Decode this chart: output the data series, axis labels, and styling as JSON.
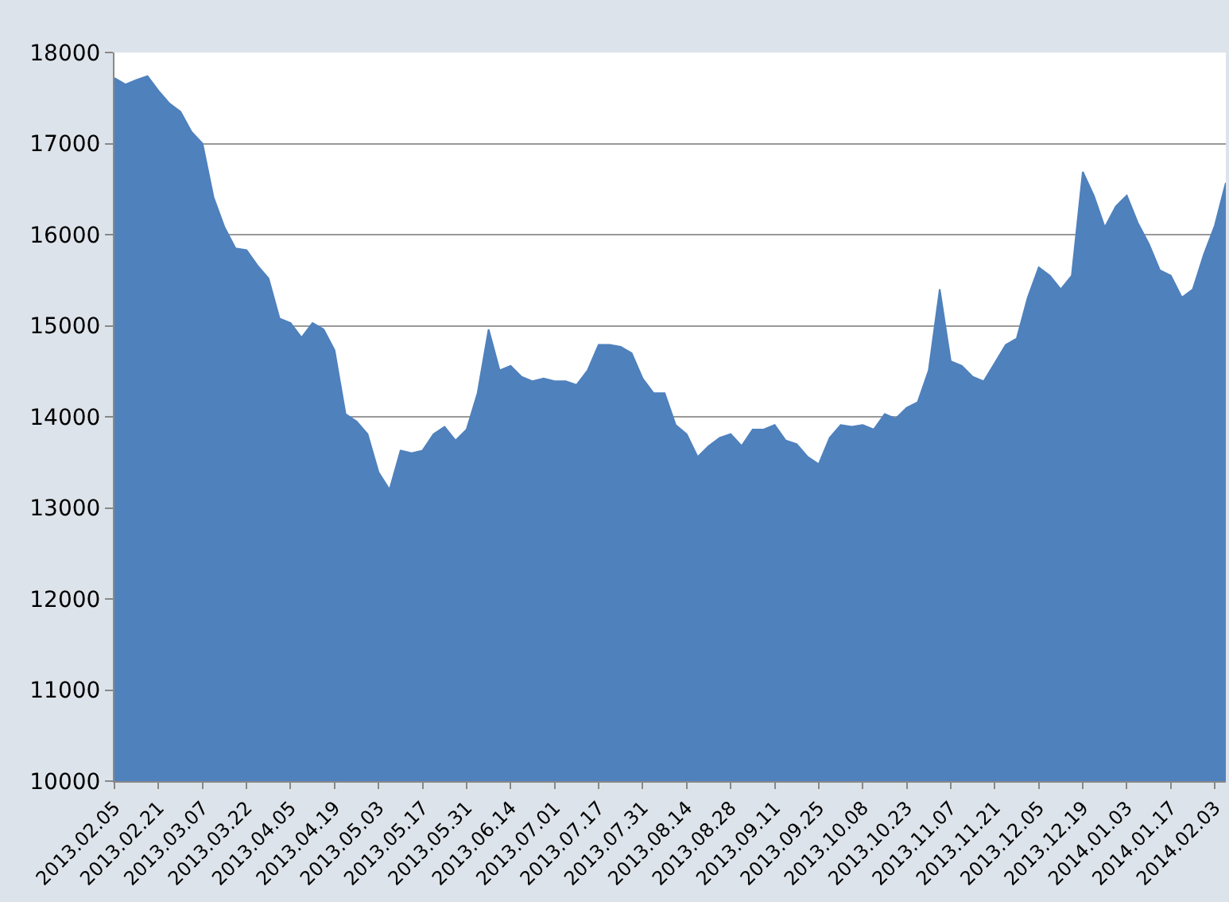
{
  "chart_data": {
    "type": "area",
    "categories": [
      "2013.02.05",
      null,
      null,
      null,
      "2013.02.21",
      null,
      null,
      null,
      "2013.03.07",
      null,
      null,
      null,
      "2013.03.22",
      null,
      null,
      null,
      "2013.04.05",
      null,
      null,
      null,
      "2013.04.19",
      null,
      null,
      null,
      "2013.05.03",
      null,
      null,
      null,
      "2013.05.17",
      null,
      null,
      null,
      "2013.05.31",
      null,
      null,
      null,
      "2013.06.14",
      null,
      null,
      null,
      "2013.07.01",
      null,
      null,
      null,
      "2013.07.17",
      null,
      null,
      null,
      "2013.07.31",
      null,
      null,
      null,
      "2013.08.14",
      null,
      null,
      null,
      "2013.08.28",
      null,
      null,
      null,
      "2013.09.11",
      null,
      null,
      null,
      "2013.09.25",
      null,
      null,
      null,
      "2013.10.08",
      null,
      null,
      null,
      "2013.10.23",
      null,
      null,
      null,
      "2013.11.07",
      null,
      null,
      null,
      "2013.11.21",
      null,
      null,
      null,
      "2013.12.05",
      null,
      null,
      null,
      "2013.12.19",
      null,
      null,
      null,
      "2014.01.03",
      null,
      null,
      null,
      "2014.01.17",
      null,
      null,
      null,
      "2014.02.03",
      null
    ],
    "series": [
      {
        "color": "#4f81bd",
        "values": [
          17720,
          17650,
          17700,
          17740,
          17580,
          17440,
          17350,
          17130,
          17000,
          16410,
          16080,
          15850,
          15830,
          15660,
          15520,
          15080,
          15030,
          14870,
          15030,
          14960,
          14730,
          14030,
          13950,
          13810,
          13390,
          13200,
          13630,
          13600,
          13630,
          13810,
          13890,
          13740,
          13860,
          14260,
          14960,
          14510,
          14560,
          14440,
          14390,
          14420,
          14390,
          14390,
          14350,
          14510,
          14790,
          14790,
          14770,
          14700,
          14420,
          14260,
          14260,
          13910,
          13810,
          13560,
          13680,
          13770,
          13810,
          13680,
          13860,
          13860,
          13910,
          13740,
          13700,
          13560,
          13480,
          13770,
          13910,
          13890,
          13910,
          13860,
          14030,
          13980,
          14100,
          14160,
          14510,
          15400,
          14610,
          14560,
          14440,
          14390,
          14590,
          14790,
          14860,
          15310,
          15640,
          15550,
          15400,
          15550,
          16690,
          16430,
          16080,
          16310,
          16430,
          16130,
          15900,
          15610,
          15550,
          15310,
          15400,
          15780,
          16100,
          16570
        ]
      }
    ],
    "ylim": [
      10000,
      18000
    ],
    "yticks": [
      10000,
      11000,
      12000,
      13000,
      14000,
      15000,
      16000,
      17000,
      18000
    ],
    "grid": "y"
  }
}
